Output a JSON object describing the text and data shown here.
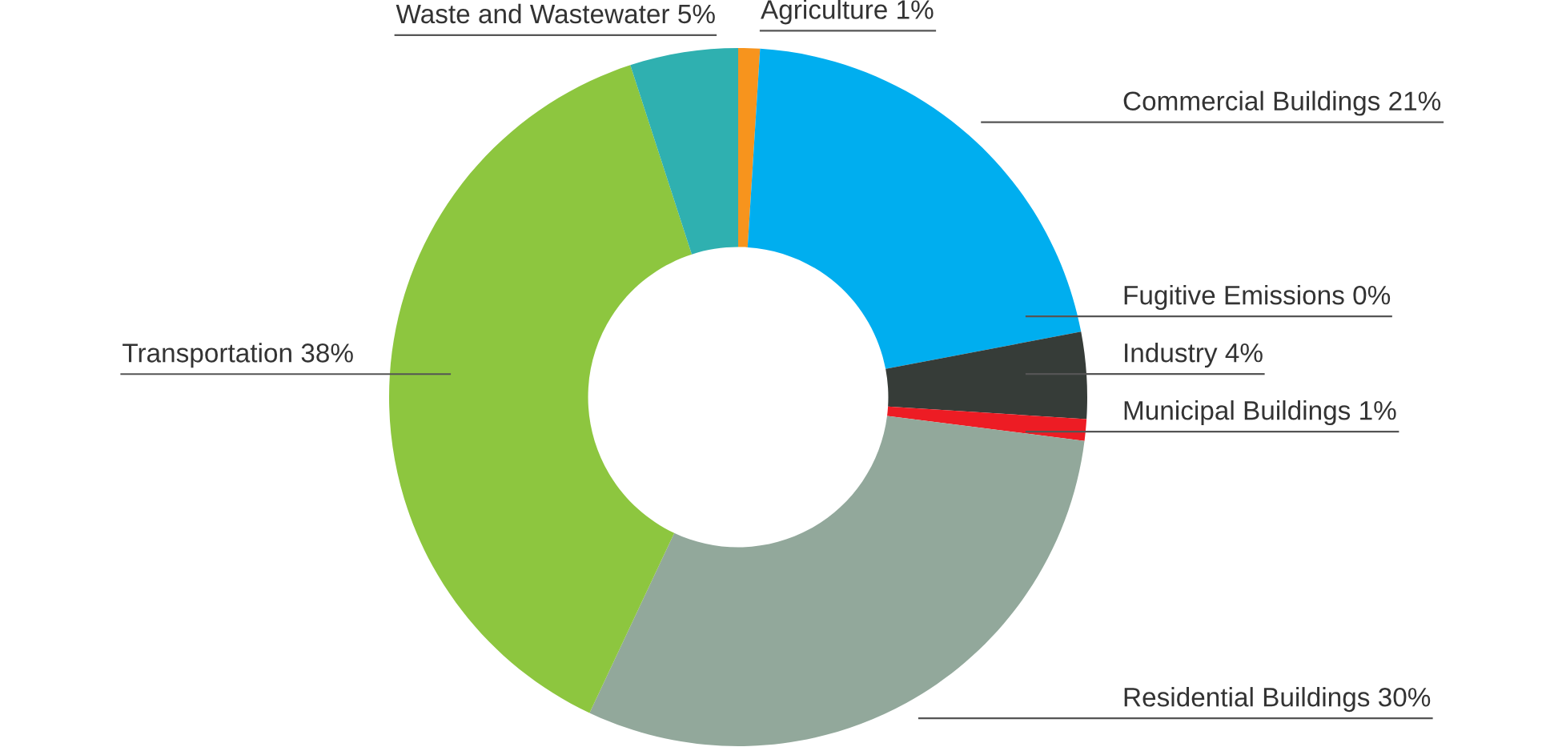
{
  "chart_data": {
    "type": "donut",
    "categories": [
      "Agriculture",
      "Commercial Buildings",
      "Fugitive Emissions",
      "Industry",
      "Municipal Buildings",
      "Residential Buildings",
      "Transportation",
      "Waste and Wastewater"
    ],
    "values": [
      1,
      21,
      0,
      4,
      1,
      30,
      38,
      5
    ],
    "colors": [
      "#f7941d",
      "#00aeef",
      "#8a8a8a",
      "#363c38",
      "#ed1c24",
      "#92a89b",
      "#8dc63f",
      "#2fb0b0"
    ],
    "value_labels": [
      "1%",
      "21%",
      "0%",
      "4%",
      "1%",
      "30%",
      "38%",
      "5%"
    ],
    "legend": false
  }
}
